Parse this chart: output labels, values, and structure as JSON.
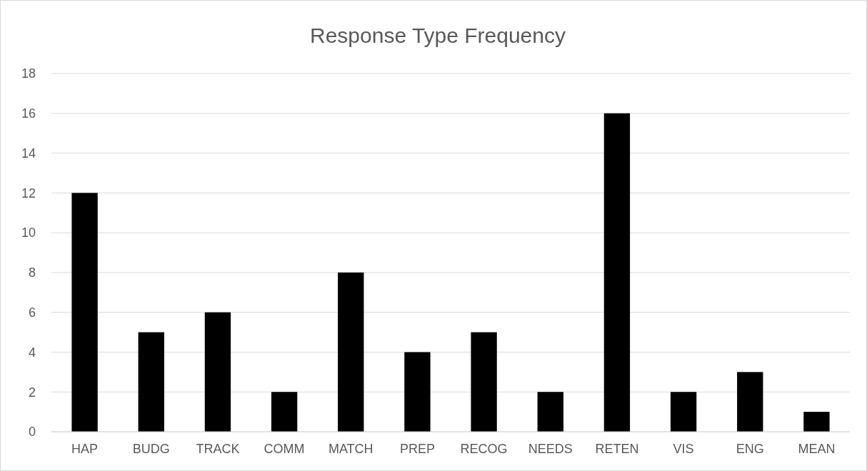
{
  "chart_data": {
    "type": "bar",
    "title": "Response Type Frequency",
    "categories": [
      "HAP",
      "BUDG",
      "TRACK",
      "COMM",
      "MATCH",
      "PREP",
      "RECOG",
      "NEEDS",
      "RETEN",
      "VIS",
      "ENG",
      "MEAN"
    ],
    "values": [
      12,
      5,
      6,
      2,
      8,
      4,
      5,
      2,
      16,
      2,
      3,
      1
    ],
    "color": "#000000",
    "ylim": [
      0,
      18
    ],
    "yticks": [
      0,
      2,
      4,
      6,
      8,
      10,
      12,
      14,
      16,
      18
    ],
    "grid": "y"
  }
}
